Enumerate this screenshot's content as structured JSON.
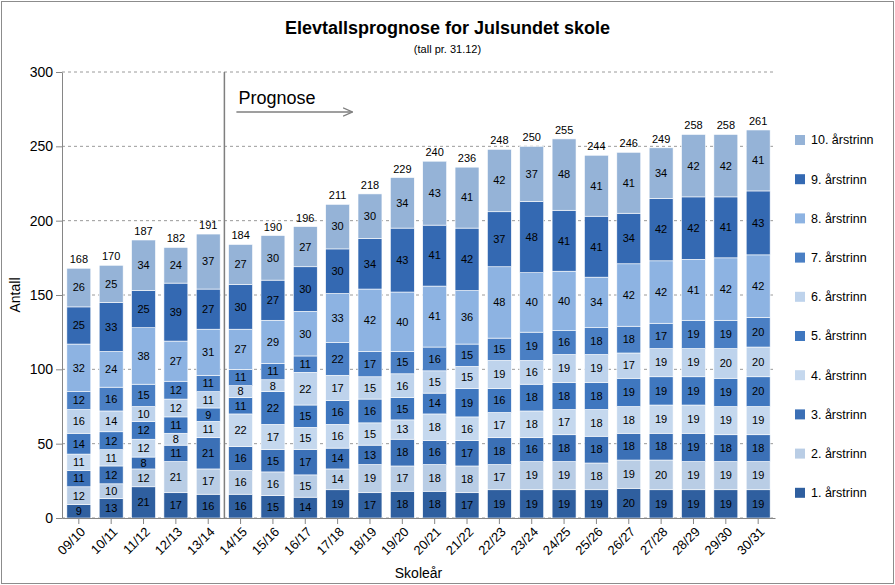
{
  "chart_data": {
    "type": "bar",
    "title": "Elevtallsprognose for Julsundet skole",
    "subtitle": "(tall pr. 31.12)",
    "x_label": "Skoleår",
    "y_label": "Antall",
    "categories": [
      "09/10",
      "10/11",
      "11/12",
      "12/13",
      "13/14",
      "14/15",
      "15/16",
      "16/17",
      "17/18",
      "18/19",
      "19/20",
      "20/21",
      "21/22",
      "22/23",
      "23/24",
      "24/25",
      "25/26",
      "26/27",
      "27/28",
      "28/29",
      "29/30",
      "30/31"
    ],
    "series": [
      {
        "name": "1. årstrinn",
        "color": "#2f5f9f",
        "values": [
          9,
          13,
          21,
          17,
          16,
          16,
          15,
          14,
          19,
          17,
          18,
          18,
          17,
          19,
          19,
          19,
          19,
          20,
          19,
          19,
          19,
          19
        ]
      },
      {
        "name": "2. årstrinn",
        "color": "#b9cde5",
        "values": [
          12,
          10,
          12,
          21,
          17,
          16,
          16,
          15,
          14,
          19,
          17,
          18,
          18,
          17,
          19,
          19,
          18,
          19,
          20,
          19,
          19,
          19
        ]
      },
      {
        "name": "3. årstrinn",
        "color": "#3b70b6",
        "values": [
          11,
          12,
          8,
          11,
          21,
          16,
          15,
          17,
          14,
          13,
          18,
          16,
          17,
          18,
          16,
          18,
          18,
          18,
          18,
          19,
          18,
          18
        ]
      },
      {
        "name": "4. årstrinn",
        "color": "#c5d8ee",
        "values": [
          11,
          11,
          12,
          8,
          11,
          22,
          17,
          15,
          16,
          15,
          13,
          18,
          16,
          17,
          18,
          17,
          18,
          18,
          19,
          19,
          19,
          19
        ]
      },
      {
        "name": "5. årstrinn",
        "color": "#3f77bf",
        "values": [
          14,
          12,
          12,
          11,
          9,
          11,
          22,
          15,
          16,
          16,
          15,
          14,
          19,
          16,
          18,
          18,
          18,
          19,
          19,
          19,
          19,
          20
        ]
      },
      {
        "name": "6. årstrinn",
        "color": "#bed3ec",
        "values": [
          16,
          14,
          10,
          12,
          11,
          8,
          8,
          22,
          17,
          15,
          16,
          15,
          15,
          19,
          16,
          19,
          19,
          17,
          19,
          19,
          20,
          20
        ]
      },
      {
        "name": "7. årstrinn",
        "color": "#4a7fc4",
        "values": [
          12,
          16,
          15,
          12,
          11,
          11,
          11,
          11,
          22,
          17,
          15,
          16,
          15,
          15,
          19,
          16,
          18,
          18,
          17,
          19,
          19,
          20
        ]
      },
      {
        "name": "8. årstrinn",
        "color": "#8db3e2",
        "values": [
          32,
          24,
          38,
          27,
          31,
          27,
          29,
          30,
          33,
          42,
          40,
          41,
          36,
          48,
          40,
          40,
          34,
          42,
          42,
          41,
          42,
          42
        ]
      },
      {
        "name": "9. årstrinn",
        "color": "#3469b2",
        "values": [
          25,
          33,
          25,
          39,
          27,
          30,
          27,
          30,
          30,
          34,
          43,
          41,
          42,
          37,
          48,
          41,
          41,
          34,
          42,
          42,
          41,
          43
        ]
      },
      {
        "name": "10. årstrinn",
        "color": "#95b3d7",
        "values": [
          26,
          25,
          34,
          24,
          37,
          27,
          30,
          27,
          30,
          30,
          34,
          43,
          41,
          42,
          37,
          48,
          41,
          41,
          34,
          42,
          42,
          41
        ]
      }
    ],
    "totals": [
      168,
      170,
      187,
      182,
      191,
      184,
      190,
      196,
      211,
      218,
      229,
      240,
      236,
      248,
      250,
      255,
      244,
      246,
      249,
      258,
      258,
      261
    ],
    "annotations": [
      {
        "text": "Prognose",
        "category": "14/15"
      }
    ],
    "ylim": [
      0,
      300
    ],
    "yticks": [
      0,
      50,
      100,
      150,
      200,
      250,
      300
    ],
    "stacked": true,
    "data_labels": true,
    "grid": true,
    "legend": "right"
  }
}
